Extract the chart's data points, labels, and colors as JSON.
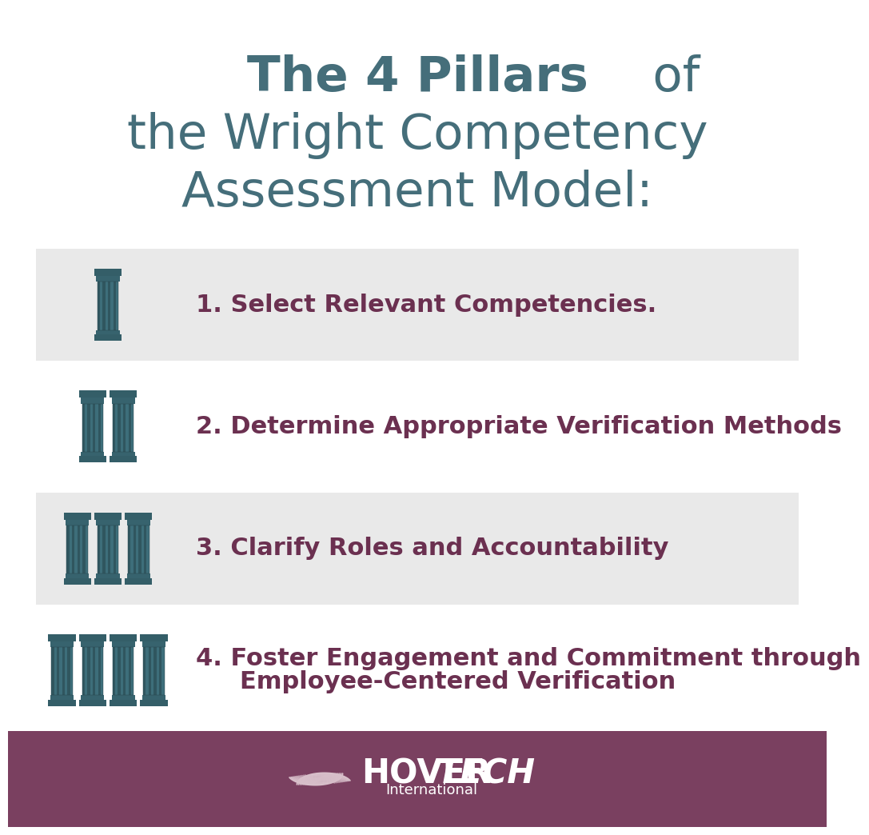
{
  "title_line1_bold": "The 4 Pillars",
  "title_line1_normal": " of",
  "title_line2": "the Wright Competency",
  "title_line3": "Assessment Model:",
  "title_color": "#456e7a",
  "background_color": "#ffffff",
  "card_bg_color": "#e9e9e9",
  "text_color": "#6b3050",
  "pillar_color": "#3d6e7a",
  "footer_bg_color": "#7a4060",
  "footer_text_color": "#ffffff",
  "items": [
    {
      "num_pillars": 1,
      "line1": "1. Select Relevant Competencies.",
      "line2": ""
    },
    {
      "num_pillars": 2,
      "line1": "2. Determine Appropriate Verification Methods",
      "line2": ""
    },
    {
      "num_pillars": 3,
      "line1": "3. Clarify Roles and Accountability",
      "line2": ""
    },
    {
      "num_pillars": 4,
      "line1": "4. Foster Engagement and Commitment through",
      "line2": "Employee-Centered Verification"
    }
  ],
  "title_fontsize": 44,
  "item_fontsize": 22,
  "footer_fontsize_main": 30,
  "footer_fontsize_sub": 13
}
